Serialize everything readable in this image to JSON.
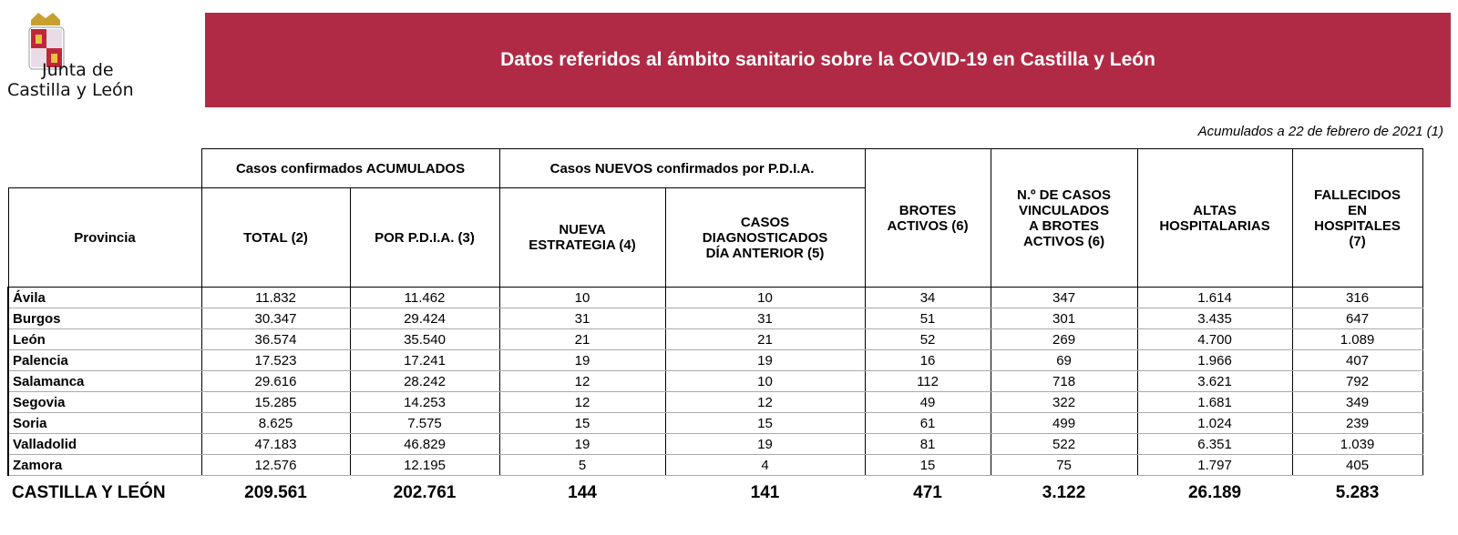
{
  "header": {
    "logo_line1": "Junta de",
    "logo_line2": "Castilla y León",
    "title": "Datos referidos al ámbito sanitario sobre la COVID-19 en Castilla y León",
    "subtitle": "Acumulados a 22 de febrero de 2021 (1)"
  },
  "table": {
    "groups": [
      "Casos confirmados ACUMULADOS",
      "Casos NUEVOS confirmados por P.D.I.A."
    ],
    "columns": [
      "Provincia",
      "TOTAL (2)",
      "POR P.D.I.A. (3)",
      "NUEVA\nESTRATEGIA (4)",
      "CASOS\nDIAGNOSTICADOS\nDÍA ANTERIOR (5)",
      "BROTES\nACTIVOS (6)",
      "N.º DE CASOS\nVINCULADOS\nA BROTES\nACTIVOS (6)",
      "ALTAS\nHOSPITALARIAS",
      "FALLECIDOS\nEN\nHOSPITALES\n(7)"
    ],
    "rows": [
      [
        "Ávila",
        "11.832",
        "11.462",
        "10",
        "10",
        "34",
        "347",
        "1.614",
        "316"
      ],
      [
        "Burgos",
        "30.347",
        "29.424",
        "31",
        "31",
        "51",
        "301",
        "3.435",
        "647"
      ],
      [
        "León",
        "36.574",
        "35.540",
        "21",
        "21",
        "52",
        "269",
        "4.700",
        "1.089"
      ],
      [
        "Palencia",
        "17.523",
        "17.241",
        "19",
        "19",
        "16",
        "69",
        "1.966",
        "407"
      ],
      [
        "Salamanca",
        "29.616",
        "28.242",
        "12",
        "10",
        "112",
        "718",
        "3.621",
        "792"
      ],
      [
        "Segovia",
        "15.285",
        "14.253",
        "12",
        "12",
        "49",
        "322",
        "1.681",
        "349"
      ],
      [
        "Soria",
        "8.625",
        "7.575",
        "15",
        "15",
        "61",
        "499",
        "1.024",
        "239"
      ],
      [
        "Valladolid",
        "47.183",
        "46.829",
        "19",
        "19",
        "81",
        "522",
        "6.351",
        "1.039"
      ],
      [
        "Zamora",
        "12.576",
        "12.195",
        "5",
        "4",
        "15",
        "75",
        "1.797",
        "405"
      ]
    ],
    "total": [
      "CASTILLA Y LEÓN",
      "209.561",
      "202.761",
      "144",
      "141",
      "471",
      "3.122",
      "26.189",
      "5.283"
    ]
  }
}
